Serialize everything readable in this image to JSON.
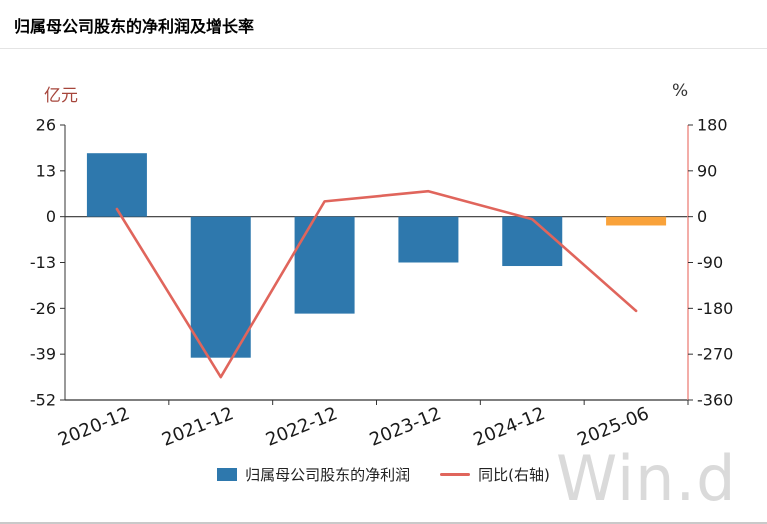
{
  "header": {
    "title": "归属母公司股东的净利润及增长率"
  },
  "colors": {
    "axis": "#333333",
    "text": "#1a1a1a",
    "bar": "#2e78ad",
    "bar_highlight": "#f9a23a",
    "line": "#e0655c",
    "right_axis_line": "#ef928c",
    "unit_left": "#a6453b",
    "watermark": "#dadada"
  },
  "chart_data": {
    "type": "bar+line",
    "title": "归属母公司股东的净利润及增长率",
    "categories": [
      "2020-12",
      "2021-12",
      "2022-12",
      "2023-12",
      "2024-12",
      "2025-06"
    ],
    "series": [
      {
        "name": "归属母公司股东的净利润",
        "type": "bar",
        "axis": "left",
        "color": "#2e78ad",
        "values": [
          18,
          -40,
          -27.5,
          -13,
          -14,
          -2.5
        ],
        "value_colors": [
          "#2e78ad",
          "#2e78ad",
          "#2e78ad",
          "#2e78ad",
          "#2e78ad",
          "#f9a23a"
        ]
      },
      {
        "name": "同比(右轴)",
        "type": "line",
        "axis": "right",
        "color": "#e0655c",
        "values": [
          15,
          -315,
          30,
          50,
          -5,
          -185
        ]
      }
    ],
    "left_axis": {
      "label": "亿元",
      "ticks": [
        26,
        13,
        0,
        -13,
        -26,
        -39,
        -52
      ],
      "max": 26,
      "min": -52
    },
    "right_axis": {
      "label": "%",
      "ticks": [
        180,
        90,
        0,
        -90,
        -180,
        -270,
        -360
      ],
      "max": 180,
      "min": -360
    },
    "legend": [
      "归属母公司股东的净利润",
      "同比(右轴)"
    ],
    "legend_position": "bottom",
    "grid": false,
    "watermark": "Win.d"
  }
}
